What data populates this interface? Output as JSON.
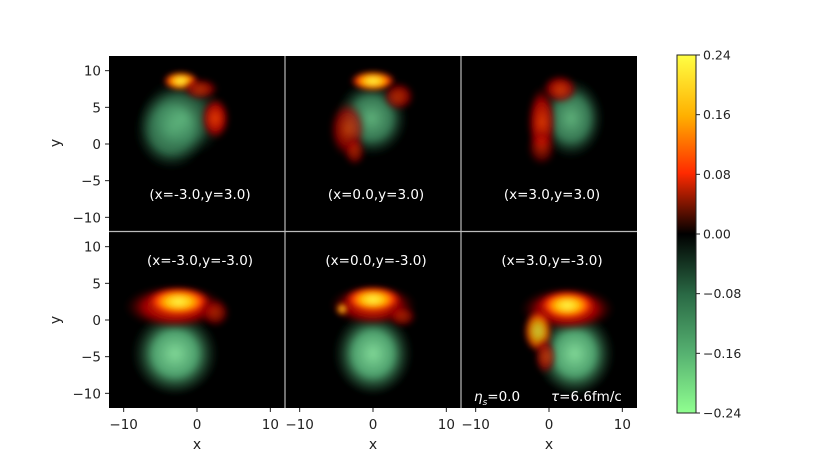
{
  "chart_data": {
    "type": "heatmap",
    "xlabel": "x",
    "ylabel": "y",
    "xlim": [
      -12,
      12
    ],
    "ylim": [
      -12,
      12
    ],
    "xticks": [
      -10,
      0,
      10
    ],
    "yticks": [
      10,
      5,
      0,
      -5,
      -10
    ],
    "tick_labels": {
      "x": [
        "−10",
        "0",
        "10"
      ],
      "y": [
        "10",
        "5",
        "0",
        "−5",
        "−10"
      ]
    },
    "panels": [
      {
        "label": "(x=-3.0,y=3.0)",
        "row": 0,
        "col": 0,
        "label_position": "bottom"
      },
      {
        "label": "(x=0.0,y=3.0)",
        "row": 0,
        "col": 1,
        "label_position": "bottom"
      },
      {
        "label": "(x=3.0,y=3.0)",
        "row": 0,
        "col": 2,
        "label_position": "bottom"
      },
      {
        "label": "(x=-3.0,y=-3.0)",
        "row": 1,
        "col": 0,
        "label_position": "top"
      },
      {
        "label": "(x=0.0,y=-3.0)",
        "row": 1,
        "col": 1,
        "label_position": "top"
      },
      {
        "label": "(x=3.0,y=-3.0)",
        "row": 1,
        "col": 2,
        "label_position": "top"
      }
    ],
    "annotations": {
      "eta": "=0.0",
      "tau": "=6.6fm/c"
    },
    "colorbar": {
      "range": [
        -0.24,
        0.24
      ],
      "ticks": [
        "0.24",
        "0.16",
        "0.08",
        "0.00",
        "−0.08",
        "−0.16",
        "−0.24"
      ]
    },
    "colors": {
      "background": "#000000",
      "positive_high": "#ffff44",
      "positive_mid": "#ff2a00",
      "negative_mid": "#3a8a5c",
      "negative_high": "#88ff88",
      "divider": "#bbbbbb"
    }
  }
}
